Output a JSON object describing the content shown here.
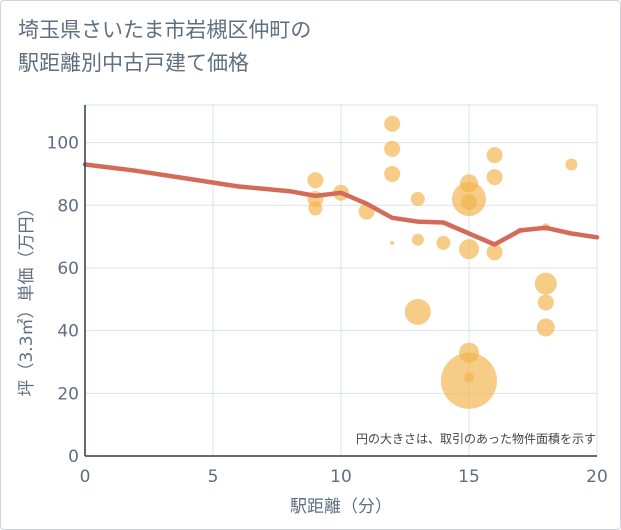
{
  "title": "埼玉県さいたま市岩槻区仲町の\n駅距離別中古戸建て価格",
  "chart_data": {
    "type": "scatter",
    "xlabel": "駅距離（分）",
    "ylabel": "坪（3.3㎡）単価（万円）",
    "xlim": [
      0,
      20
    ],
    "ylim": [
      0,
      112
    ],
    "x_ticks": [
      "0",
      "5",
      "10",
      "15",
      "20"
    ],
    "y_ticks": [
      "0",
      "20",
      "40",
      "60",
      "80",
      "100"
    ],
    "note": "円の大きさは、取引のあった物件面積を示す",
    "grid": true,
    "colors": {
      "bubble": "#f2b44c",
      "line": "#d46a5a"
    },
    "bubbles": [
      {
        "x": 9,
        "y": 88,
        "r": 8
      },
      {
        "x": 9,
        "y": 82,
        "r": 8
      },
      {
        "x": 9,
        "y": 79,
        "r": 7
      },
      {
        "x": 10,
        "y": 84,
        "r": 8
      },
      {
        "x": 11,
        "y": 78,
        "r": 8
      },
      {
        "x": 12,
        "y": 106,
        "r": 8
      },
      {
        "x": 12,
        "y": 98,
        "r": 8
      },
      {
        "x": 12,
        "y": 90,
        "r": 8
      },
      {
        "x": 12,
        "y": 68,
        "r": 2
      },
      {
        "x": 13,
        "y": 82,
        "r": 7
      },
      {
        "x": 13,
        "y": 69,
        "r": 6
      },
      {
        "x": 13,
        "y": 46,
        "r": 13
      },
      {
        "x": 14,
        "y": 68,
        "r": 7
      },
      {
        "x": 15,
        "y": 87,
        "r": 9
      },
      {
        "x": 15,
        "y": 82,
        "r": 17
      },
      {
        "x": 15,
        "y": 81,
        "r": 8
      },
      {
        "x": 15,
        "y": 66,
        "r": 10
      },
      {
        "x": 15,
        "y": 33,
        "r": 10
      },
      {
        "x": 15,
        "y": 24,
        "r": 28
      },
      {
        "x": 15,
        "y": 25,
        "r": 5
      },
      {
        "x": 16,
        "y": 96,
        "r": 8
      },
      {
        "x": 16,
        "y": 89,
        "r": 8
      },
      {
        "x": 16,
        "y": 65,
        "r": 8
      },
      {
        "x": 17,
        "y": 72,
        "r": 3
      },
      {
        "x": 18,
        "y": 73,
        "r": 4
      },
      {
        "x": 18,
        "y": 55,
        "r": 11
      },
      {
        "x": 18,
        "y": 49,
        "r": 8
      },
      {
        "x": 18,
        "y": 41,
        "r": 9
      },
      {
        "x": 19,
        "y": 93,
        "r": 6
      }
    ],
    "line": {
      "x": [
        0,
        2,
        4,
        6,
        8,
        9,
        10,
        11,
        12,
        13,
        14,
        15,
        16,
        17,
        18,
        19,
        20
      ],
      "y": [
        93,
        91,
        88.5,
        86,
        84.5,
        83,
        84,
        80.5,
        76,
        74.8,
        74.5,
        71,
        67.5,
        72,
        72.8,
        71,
        69.8
      ]
    }
  }
}
